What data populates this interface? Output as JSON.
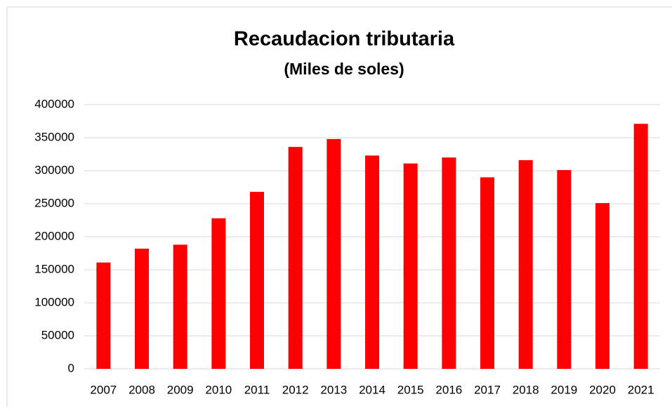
{
  "chart_data": {
    "type": "bar",
    "title": "Recaudacion tributaria",
    "subtitle": "(Miles de soles)",
    "categories": [
      "2007",
      "2008",
      "2009",
      "2010",
      "2011",
      "2012",
      "2013",
      "2014",
      "2015",
      "2016",
      "2017",
      "2018",
      "2019",
      "2020",
      "2021"
    ],
    "values": [
      161000,
      182000,
      188000,
      228000,
      268000,
      336000,
      348000,
      323000,
      311000,
      320000,
      290000,
      316000,
      301000,
      251000,
      371000
    ],
    "color": "#ff0000",
    "ylim": [
      0,
      400000
    ],
    "yticks": [
      0,
      50000,
      100000,
      150000,
      200000,
      250000,
      300000,
      350000,
      400000
    ],
    "grid": true
  }
}
